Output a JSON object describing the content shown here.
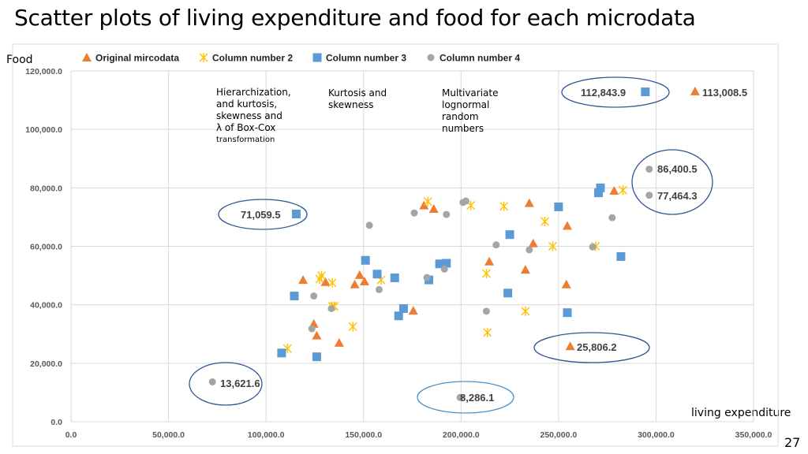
{
  "title": "Scatter plots of living expenditure and food for each microdata",
  "page_number": "27",
  "colors": {
    "original": "#ED7D31",
    "col2": "#FFC000",
    "col3": "#5B9BD5",
    "col4": "#A5A5A5",
    "ellipse_dark": "#2F5597",
    "ellipse_light": "#4A90C8",
    "grid": "#D9D9D9"
  },
  "chart_data": {
    "type": "scatter",
    "title": "Scatter plots of living expenditure and food for each microdata",
    "xlabel": "living expenditure",
    "ylabel": "Food",
    "xlim": [
      0,
      350000
    ],
    "ylim": [
      0,
      120000
    ],
    "x_ticks": [
      0,
      50000,
      100000,
      150000,
      200000,
      250000,
      300000,
      350000
    ],
    "y_ticks": [
      0,
      20000,
      40000,
      60000,
      80000,
      100000,
      120000
    ],
    "x_tick_labels": [
      "0.0",
      "50,000.0",
      "100,000.0",
      "150,000.0",
      "200,000.0",
      "250,000.0",
      "300,000.0",
      "350,000.0"
    ],
    "y_tick_labels": [
      "0.0",
      "20,000.0",
      "40,000.0",
      "60,000.0",
      "80,000.0",
      "100,000.0",
      "120,000.0"
    ],
    "grid": true,
    "legend_position": "top",
    "series": [
      {
        "name": "Original mircodata",
        "marker": "triangle",
        "points": [
          [
            119000,
            48500
          ],
          [
            130500,
            47800
          ],
          [
            137500,
            27000
          ],
          [
            145500,
            47000
          ],
          [
            148000,
            50200
          ],
          [
            150500,
            48000
          ],
          [
            175500,
            38000
          ],
          [
            181000,
            74000
          ],
          [
            186000,
            72800
          ],
          [
            214500,
            54800
          ],
          [
            233000,
            52000
          ],
          [
            235000,
            74800
          ],
          [
            237000,
            61000
          ],
          [
            254500,
            67000
          ],
          [
            254000,
            47000
          ],
          [
            256000,
            25806.2
          ],
          [
            278500,
            79000
          ],
          [
            320000,
            113008.5
          ],
          [
            124500,
            33500
          ],
          [
            126000,
            29500
          ]
        ]
      },
      {
        "name": "Column number 2",
        "marker": "asterisk",
        "points": [
          [
            111000,
            25000
          ],
          [
            127500,
            48800
          ],
          [
            128500,
            50000
          ],
          [
            134000,
            47500
          ],
          [
            134000,
            39500
          ],
          [
            135000,
            39500
          ],
          [
            144500,
            32500
          ],
          [
            159000,
            48500
          ],
          [
            183000,
            75300
          ],
          [
            205000,
            74000
          ],
          [
            213000,
            50700
          ],
          [
            213500,
            30500
          ],
          [
            222000,
            73700
          ],
          [
            233000,
            37800
          ],
          [
            243000,
            68500
          ],
          [
            247000,
            60000
          ],
          [
            269000,
            60000
          ],
          [
            283000,
            79200
          ]
        ]
      },
      {
        "name": "Column number 3",
        "marker": "square",
        "points": [
          [
            108000,
            23500
          ],
          [
            114500,
            43000
          ],
          [
            115500,
            71059.5
          ],
          [
            126000,
            22200
          ],
          [
            151000,
            55200
          ],
          [
            157000,
            50500
          ],
          [
            166000,
            49200
          ],
          [
            168000,
            36200
          ],
          [
            170500,
            38700
          ],
          [
            183500,
            48500
          ],
          [
            189000,
            54000
          ],
          [
            192500,
            54200
          ],
          [
            224000,
            44000
          ],
          [
            225000,
            64000
          ],
          [
            250000,
            73500
          ],
          [
            254500,
            37300
          ],
          [
            270500,
            78300
          ],
          [
            271500,
            80000
          ],
          [
            282000,
            56500
          ],
          [
            294500,
            112843.9
          ]
        ]
      },
      {
        "name": "Column number 4",
        "marker": "circle",
        "points": [
          [
            72500,
            13621.6
          ],
          [
            123500,
            31800
          ],
          [
            124500,
            43000
          ],
          [
            133500,
            38700
          ],
          [
            153000,
            67200
          ],
          [
            158000,
            45200
          ],
          [
            176000,
            71400
          ],
          [
            182500,
            49300
          ],
          [
            191500,
            52200
          ],
          [
            192500,
            70900
          ],
          [
            199500,
            8286.1
          ],
          [
            201000,
            75000
          ],
          [
            202500,
            75500
          ],
          [
            213000,
            37800
          ],
          [
            218000,
            60500
          ],
          [
            235000,
            58800
          ],
          [
            267500,
            59800
          ],
          [
            277500,
            69800
          ],
          [
            296500,
            77464.3
          ],
          [
            296500,
            86400.5
          ]
        ]
      }
    ],
    "annotations": [
      {
        "lines": [
          "Hierarchization,",
          "and kurtosis,",
          "skewness and",
          "λ of Box-Cox"
        ],
        "small_line": "transformation"
      },
      {
        "lines": [
          "Kurtosis and",
          "skewness"
        ]
      },
      {
        "lines": [
          "Multivariate",
          "lognormal",
          "random",
          "numbers"
        ]
      }
    ],
    "callouts": [
      {
        "label": "112,843.9",
        "x": 294500,
        "y": 112843.9,
        "series": "Column number 3"
      },
      {
        "label": "113,008.5",
        "x": 320000,
        "y": 113008.5,
        "series": "Original mircodata"
      },
      {
        "label": "86,400.5",
        "x": 296500,
        "y": 86400.5,
        "series": "Column number 4"
      },
      {
        "label": "77,464.3",
        "x": 296500,
        "y": 77464.3,
        "series": "Column number 4"
      },
      {
        "label": "71,059.5",
        "x": 115500,
        "y": 71059.5,
        "series": "Column number 3"
      },
      {
        "label": "25,806.2",
        "x": 256000,
        "y": 25806.2,
        "series": "Original mircodata"
      },
      {
        "label": "13,621.6",
        "x": 72500,
        "y": 13621.6,
        "series": "Column number 4"
      },
      {
        "label": "8,286.1",
        "x": 199500,
        "y": 8286.1,
        "series": "Column number 4"
      }
    ]
  }
}
